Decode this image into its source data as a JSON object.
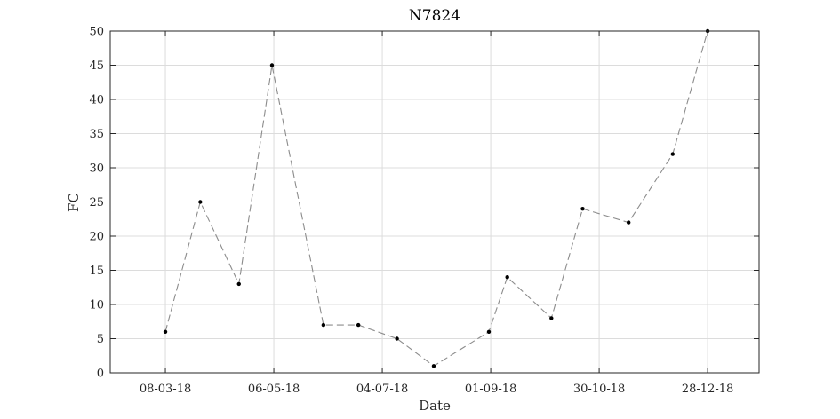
{
  "chart_data": {
    "type": "line",
    "title": "N7824",
    "xlabel": "Date",
    "ylabel": "FC",
    "x_axis": {
      "type": "date",
      "range": [
        "2018-02-06",
        "2019-01-25"
      ],
      "ticks": [
        "2018-03-08",
        "2018-05-06",
        "2018-07-04",
        "2018-09-01",
        "2018-10-30",
        "2018-12-28"
      ],
      "tick_labels": [
        "08-03-18",
        "06-05-18",
        "04-07-18",
        "01-09-18",
        "30-10-18",
        "28-12-18"
      ]
    },
    "y_axis": {
      "range": [
        0,
        50
      ],
      "ticks": [
        0,
        5,
        10,
        15,
        20,
        25,
        30,
        35,
        40,
        45,
        50
      ],
      "tick_labels": [
        "0",
        "5",
        "10",
        "15",
        "20",
        "25",
        "30",
        "35",
        "40",
        "45",
        "50"
      ]
    },
    "grid": true,
    "series": [
      {
        "color": "#8c8c8c",
        "marker_color": "#000000",
        "line_style": "dashed",
        "points": [
          {
            "x": "2018-03-08",
            "y": 6
          },
          {
            "x": "2018-03-27",
            "y": 25
          },
          {
            "x": "2018-04-17",
            "y": 13
          },
          {
            "x": "2018-05-05",
            "y": 45
          },
          {
            "x": "2018-06-02",
            "y": 7
          },
          {
            "x": "2018-06-21",
            "y": 7
          },
          {
            "x": "2018-07-12",
            "y": 5
          },
          {
            "x": "2018-08-01",
            "y": 1
          },
          {
            "x": "2018-08-31",
            "y": 6
          },
          {
            "x": "2018-09-10",
            "y": 14
          },
          {
            "x": "2018-10-04",
            "y": 8
          },
          {
            "x": "2018-10-21",
            "y": 24
          },
          {
            "x": "2018-11-15",
            "y": 22
          },
          {
            "x": "2018-12-09",
            "y": 32
          },
          {
            "x": "2018-12-28",
            "y": 50
          }
        ]
      }
    ]
  }
}
